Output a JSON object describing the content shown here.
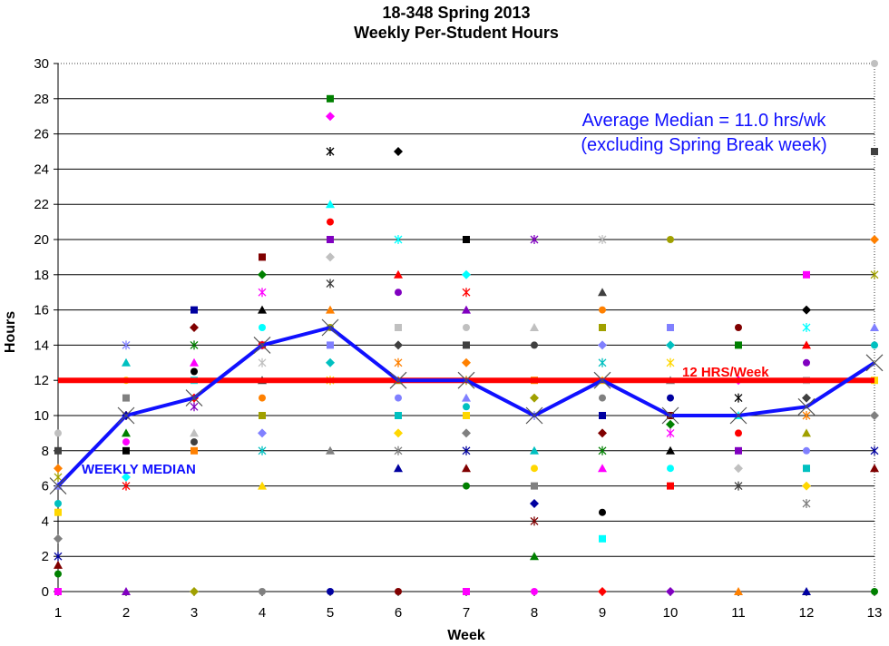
{
  "chart_data": {
    "type": "scatter",
    "title": "18-348 Spring 2013",
    "subtitle": "Weekly Per-Student Hours",
    "xlabel": "Week",
    "ylabel": "Hours",
    "xlim": [
      1,
      13
    ],
    "ylim": [
      0,
      30
    ],
    "x_ticks": [
      "1",
      "2",
      "3",
      "4",
      "5",
      "6",
      "7",
      "8",
      "9",
      "10",
      "11",
      "12",
      "13"
    ],
    "y_ticks": [
      "0",
      "2",
      "4",
      "6",
      "8",
      "10",
      "12",
      "14",
      "16",
      "18",
      "20",
      "22",
      "24",
      "26",
      "28",
      "30"
    ],
    "grid": true,
    "annotation_line1": "Average Median = 11.0 hrs/wk",
    "annotation_line2": "(excluding  Spring  Break  week)",
    "median_label": "WEEKLY MEDIAN",
    "reference_label": "12 HRS/Week",
    "reference_value": 12,
    "median": {
      "x": [
        1,
        2,
        3,
        4,
        5,
        6,
        7,
        8,
        9,
        10,
        11,
        12,
        13
      ],
      "y": [
        6,
        10,
        11,
        14,
        15,
        12,
        12,
        10,
        12,
        10,
        10,
        10.5,
        13
      ],
      "color": "#1010ff"
    },
    "reference_color": "#ff0000",
    "students": [
      {
        "x": 1,
        "y": [
          0,
          1,
          1.5,
          2,
          3,
          4.5,
          5,
          6,
          6.5,
          7,
          8,
          9
        ]
      },
      {
        "x": 2,
        "y": [
          0,
          6,
          6.5,
          8,
          8.5,
          9,
          10,
          10,
          11,
          12,
          13,
          14
        ]
      },
      {
        "x": 3,
        "y": [
          0,
          8,
          8.5,
          9,
          10.5,
          11,
          12,
          12.5,
          13,
          14,
          15,
          16
        ]
      },
      {
        "x": 4,
        "y": [
          0,
          6,
          8,
          9,
          10,
          11,
          12,
          13,
          14,
          14,
          15,
          16,
          17,
          18,
          19
        ]
      },
      {
        "x": 5,
        "y": [
          0,
          8,
          12,
          13,
          14,
          15,
          16,
          17.5,
          19,
          20,
          21,
          22,
          25,
          27,
          28
        ]
      },
      {
        "x": 6,
        "y": [
          0,
          7,
          8,
          9,
          10,
          11,
          12,
          13,
          14,
          15,
          17,
          18,
          20,
          25
        ]
      },
      {
        "x": 7,
        "y": [
          0,
          6,
          7,
          8,
          9,
          10,
          10.5,
          11,
          12,
          13,
          14,
          15,
          16,
          17,
          18,
          20
        ]
      },
      {
        "x": 8,
        "y": [
          0,
          2,
          4,
          5,
          6,
          7,
          8,
          10,
          11,
          12,
          14,
          15,
          20
        ]
      },
      {
        "x": 9,
        "y": [
          0,
          3,
          4.5,
          7,
          8,
          9,
          10,
          11,
          12,
          13,
          14,
          15,
          16,
          17,
          20
        ]
      },
      {
        "x": 10,
        "y": [
          0,
          6,
          7,
          8,
          9,
          9.5,
          10,
          11,
          12,
          13,
          14,
          15,
          20
        ]
      },
      {
        "x": 11,
        "y": [
          0,
          6,
          7,
          8,
          9,
          10,
          11,
          12,
          14,
          15
        ]
      },
      {
        "x": 12,
        "y": [
          0,
          5,
          6,
          7,
          8,
          9,
          10,
          11,
          12,
          13,
          14,
          15,
          16,
          18
        ]
      },
      {
        "x": 13,
        "y": [
          0,
          7,
          8,
          10,
          12,
          14,
          15,
          18,
          20,
          25,
          30
        ]
      }
    ],
    "marker_colors": [
      "#ff00ff",
      "#008000",
      "#800000",
      "#0000a0",
      "#808080",
      "#ffd700",
      "#00c0c0",
      "#8080ff",
      "#a0a000",
      "#ff8000",
      "#404040",
      "#c0c0c0",
      "#8000c0",
      "#ff0000",
      "#00ffff",
      "#000000"
    ]
  }
}
